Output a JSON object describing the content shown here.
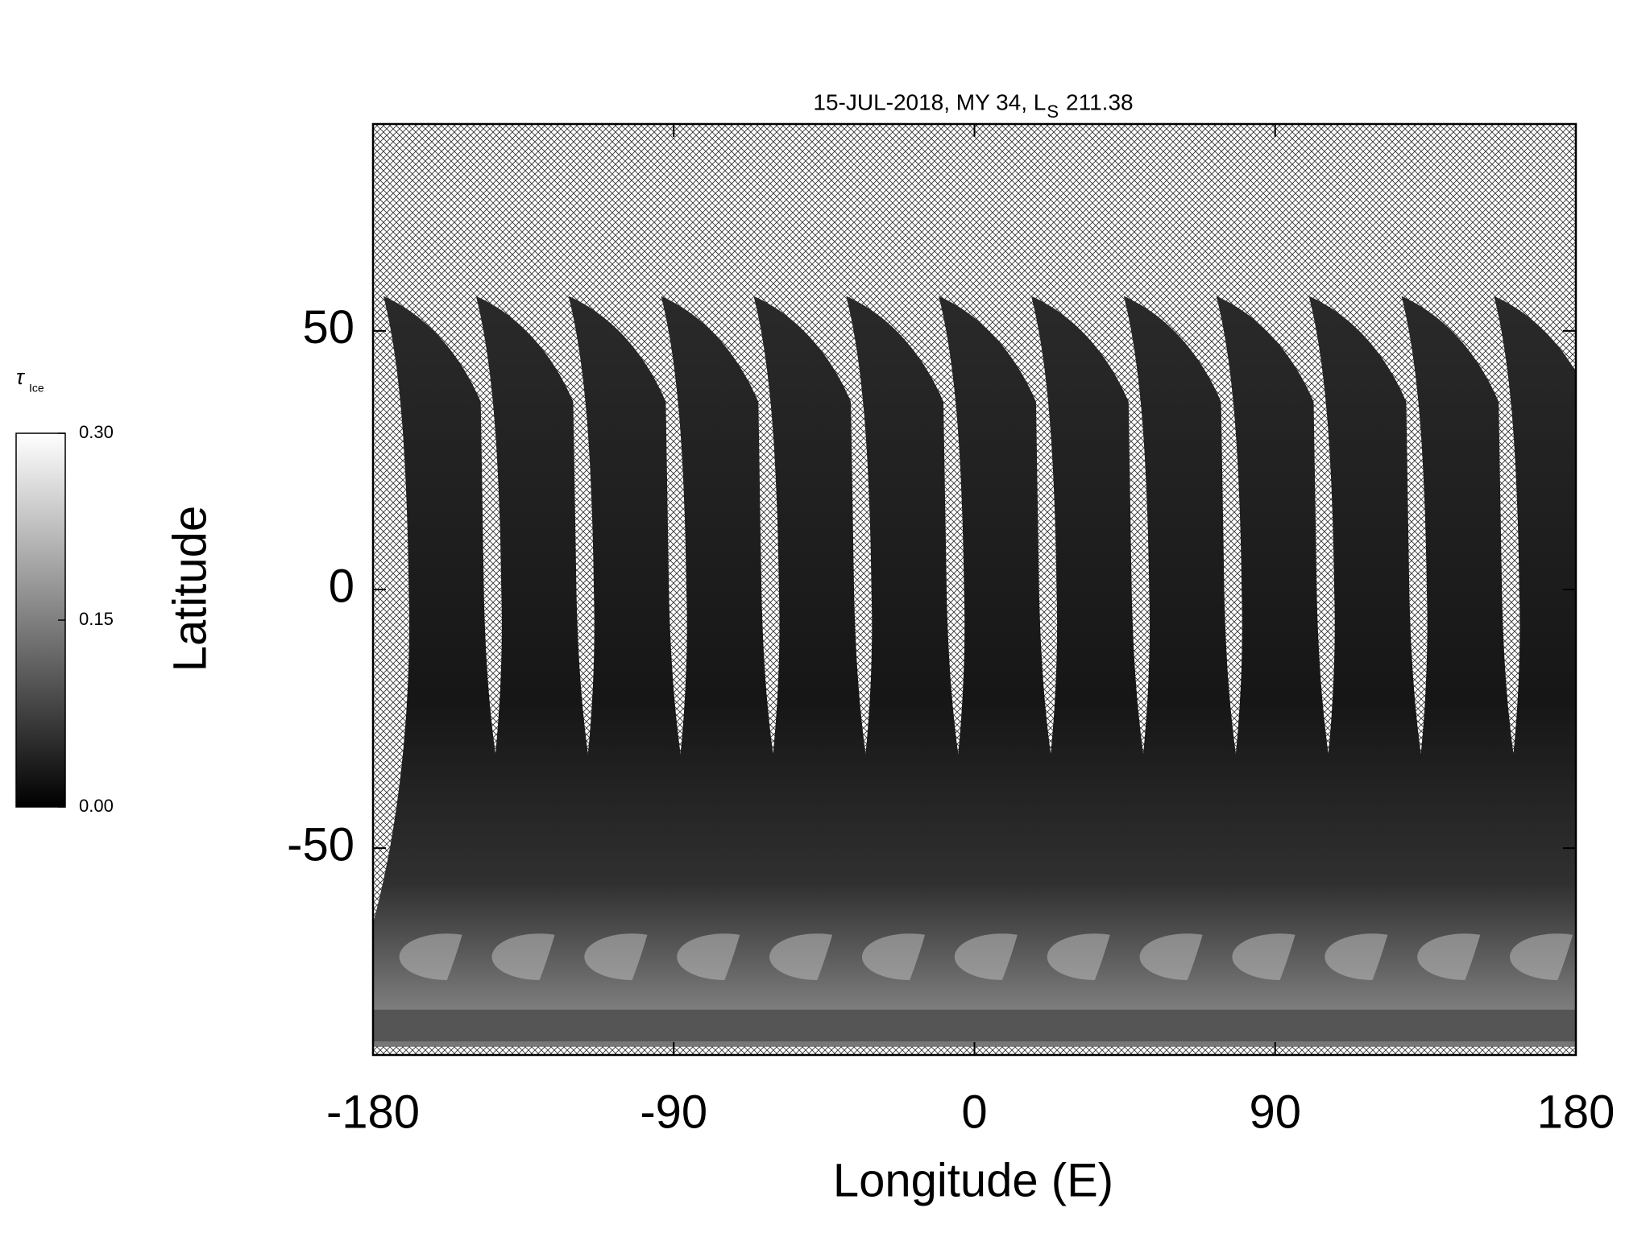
{
  "chart_data": {
    "type": "map",
    "title": "15-JUL-2018, MY 34,  L",
    "title_sub": "S",
    "title_value": 211.38,
    "x_label": "Longitude (E)",
    "y_label": "Latitude",
    "xlim": [
      -180,
      180
    ],
    "xticks": [
      -180,
      -90,
      0,
      90,
      180
    ],
    "ylim": [
      -90,
      90
    ],
    "yticks": [
      -50,
      0,
      50
    ],
    "colorbar": {
      "title": "τ",
      "title_sub": "Ice",
      "lim": [
        0,
        0.3
      ],
      "ticks": [
        {
          "value": 0.3,
          "label": "0.30"
        },
        {
          "value": 0.15,
          "label": "0.15"
        },
        {
          "value": 0,
          "label": "0.00"
        }
      ]
    }
  }
}
